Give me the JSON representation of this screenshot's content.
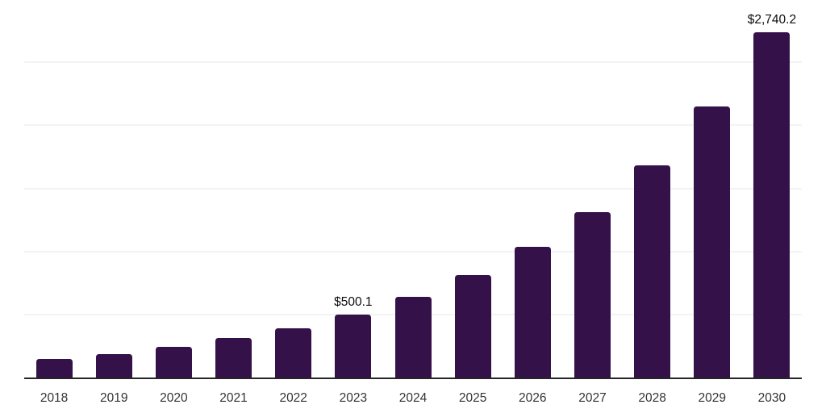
{
  "chart_data": {
    "type": "bar",
    "title": "",
    "xlabel": "",
    "ylabel": "",
    "categories": [
      "2018",
      "2019",
      "2020",
      "2021",
      "2022",
      "2023",
      "2024",
      "2025",
      "2026",
      "2027",
      "2028",
      "2029",
      "2030"
    ],
    "values": [
      150,
      188,
      240,
      315,
      392,
      500.1,
      638,
      815,
      1035,
      1310,
      1680,
      2148,
      2740.2
    ],
    "annotations": [
      {
        "category": "2023",
        "text": "$500.1"
      },
      {
        "category": "2030",
        "text": "$2,740.2"
      }
    ],
    "ylim": [
      0,
      3000
    ],
    "gridlines": [
      500,
      1000,
      1500,
      2000,
      2500,
      3000
    ],
    "grid": "horizontal-only, no y tick labels",
    "legend": "none",
    "bar_color": "#35114A",
    "axis_color": "#262626",
    "gridline_color": "#f3f3f3",
    "tick_label_color": "#333333",
    "data_label_color": "#0d0d0d"
  }
}
